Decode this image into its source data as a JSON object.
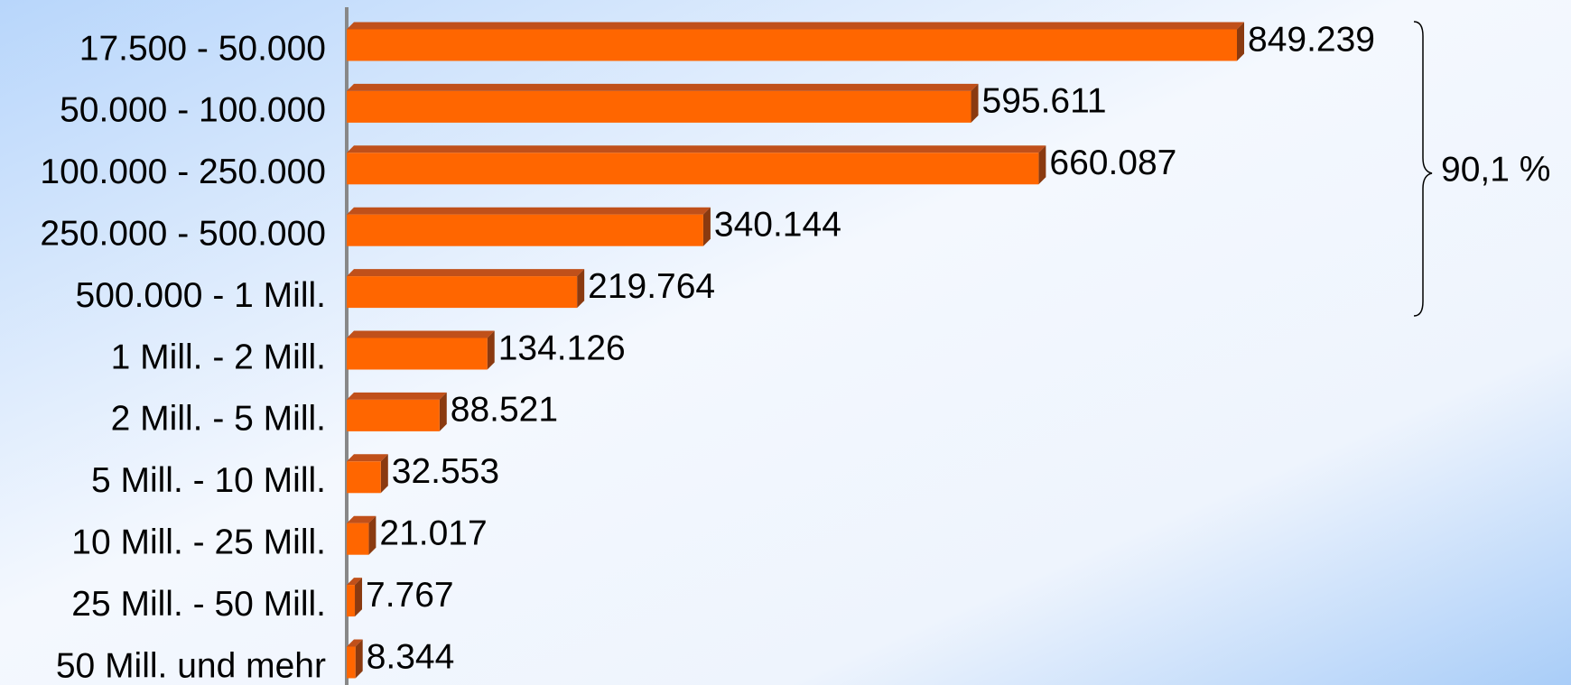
{
  "chart_data": {
    "type": "bar",
    "orientation": "horizontal",
    "categories": [
      "17.500 - 50.000",
      "50.000 - 100.000",
      "100.000 - 250.000",
      "250.000 - 500.000",
      "500.000 - 1 Mill.",
      "1 Mill. - 2 Mill.",
      "2 Mill. - 5 Mill.",
      "5 Mill. - 10 Mill.",
      "10 Mill. - 25 Mill.",
      "25 Mill. - 50 Mill.",
      "50 Mill. und mehr"
    ],
    "values": [
      849239,
      595611,
      660087,
      340144,
      219764,
      134126,
      88521,
      32553,
      21017,
      7767,
      8344
    ],
    "value_labels": [
      "849.239",
      "595.611",
      "660.087",
      "340.144",
      "219.764",
      "134.126",
      "88.521",
      "32.553",
      "21.017",
      "7.767",
      "8.344"
    ],
    "color": "#ff6600",
    "annotation": "90,1 %"
  }
}
